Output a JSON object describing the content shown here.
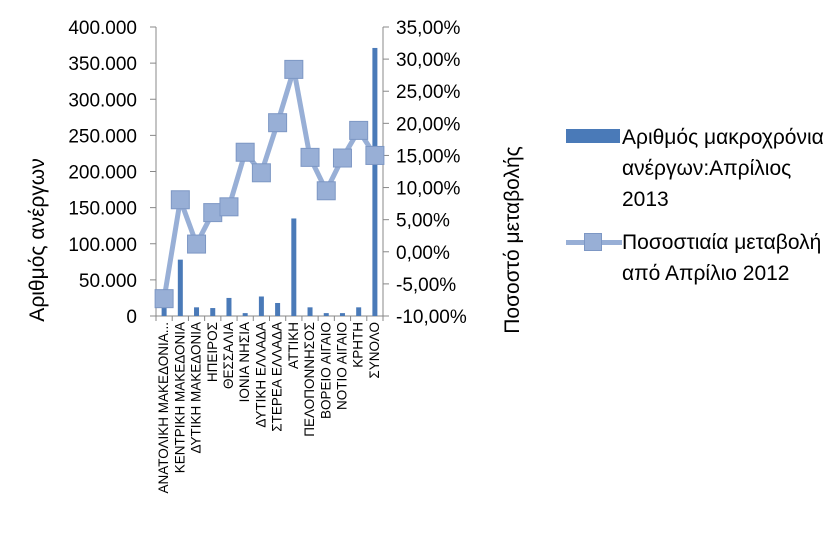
{
  "chart_data": {
    "type": "bar+line",
    "categories": [
      "ΑΝΑΤΟΛΙΚΗ ΜΑΚΕΔΟΝΙΑ...",
      "ΚΕΝΤΡΙΚΗ ΜΑΚΕΔΟΝΙΑ",
      "ΔΥΤΙΚΗ ΜΑΚΕΔΟΝΙΑ",
      "ΗΠΕΙΡΟΣ",
      "ΘΕΣΣΑΛΙΑ",
      "ΙΟΝΙΑ ΝΗΣΙΑ",
      "ΔΥΤΙΚΗ ΕΛΛΑΔΑ",
      "ΣΤΕΡΕΑ ΕΛΛΑΔΑ",
      "ΑΤΤΙΚΗ",
      "ΠΕΛΟΠΟΝΝΗΣΟΣ",
      "ΒΟΡΕΙΟ ΑΙΓΑΙΟ",
      "ΝΟΤΙΟ ΑΙΓΑΙΟ",
      "ΚΡΗΤΗ",
      "ΣΥΝΟΛΟ"
    ],
    "series": [
      {
        "name": "Αριθμός μακροχρόνια ανέργων:Απρίλιος 2013",
        "kind": "bar",
        "axis": "left",
        "color": "#4a7ab8",
        "values": [
          12000,
          78000,
          12000,
          11000,
          25000,
          4000,
          27000,
          18000,
          135000,
          12000,
          4000,
          4000,
          12000,
          371000
        ]
      },
      {
        "name": "Ποσοστιαία μεταβολή από Απρίλιο 2012",
        "kind": "line",
        "axis": "right",
        "color": "#98afd6",
        "values": [
          -7.3,
          8.1,
          1.2,
          6.1,
          7.0,
          15.5,
          12.3,
          20.1,
          28.4,
          14.7,
          9.5,
          14.6,
          18.9,
          15.0
        ]
      }
    ],
    "y_left": {
      "label": "Αριθμός ανέργων",
      "range": [
        0,
        400000
      ],
      "ticks": [
        "400.000",
        "350.000",
        "300.000",
        "250.000",
        "200.000",
        "150.000",
        "100.000",
        "50.000",
        "0"
      ]
    },
    "y_right": {
      "label": "Ποσοστό μεταβολής",
      "range": [
        -10,
        35
      ],
      "ticks": [
        "35,00%",
        "30,00%",
        "25,00%",
        "20,00%",
        "15,00%",
        "10,00%",
        "5,00%",
        "0,00%",
        "-5,00%",
        "-10,00%"
      ]
    },
    "legend_position": "right",
    "grid": false
  },
  "legend": [
    {
      "text": "Αριθμός μακροχρόνια ανέργων:Απρίλιος 2013"
    },
    {
      "text": "Ποσοστιαία μεταβολή από Απρίλιο 2012"
    }
  ]
}
